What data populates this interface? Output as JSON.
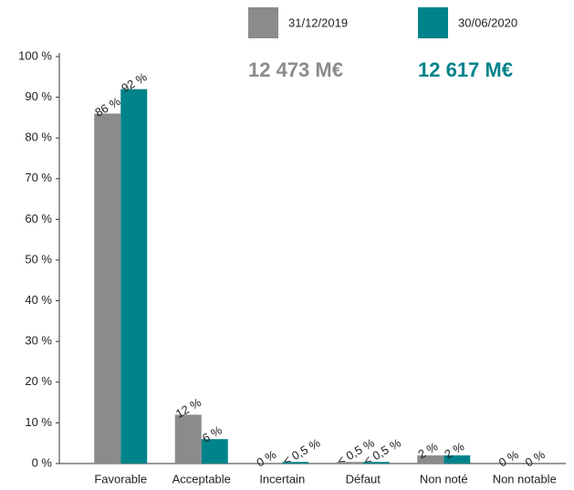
{
  "chart_data": {
    "type": "bar",
    "categories": [
      "Favorable",
      "Acceptable",
      "Incertain",
      "Défaut",
      "Non noté",
      "Non notable"
    ],
    "series": [
      {
        "name": "31/12/2019",
        "color": "#8a8b8d",
        "total": "12 473 M€",
        "values": [
          86,
          12,
          0,
          0.4,
          2,
          0
        ],
        "value_labels": [
          "86 %",
          "12 %",
          "0 %",
          "< 0,5 %",
          "2 %",
          "0 %"
        ]
      },
      {
        "name": "30/06/2020",
        "color": "#00838a",
        "total": "12 617 M€",
        "values": [
          92,
          6,
          0.4,
          0.4,
          2,
          0
        ],
        "value_labels": [
          "92 %",
          "6 %",
          "< 0,5 %",
          "< 0,5 %",
          "2 %",
          "0 %"
        ]
      }
    ],
    "ylim": [
      0,
      100
    ],
    "yticks": [
      {
        "value": 0,
        "label": "0 %"
      },
      {
        "value": 10,
        "label": "10 %"
      },
      {
        "value": 20,
        "label": "20 %"
      },
      {
        "value": 30,
        "label": "30 %"
      },
      {
        "value": 40,
        "label": "40 %"
      },
      {
        "value": 50,
        "label": "50 %"
      },
      {
        "value": 60,
        "label": "60 %"
      },
      {
        "value": 70,
        "label": "70 %"
      },
      {
        "value": 80,
        "label": "80 %"
      },
      {
        "value": 90,
        "label": "90 %"
      },
      {
        "value": 100,
        "label": "100 %"
      }
    ],
    "grid": false
  }
}
